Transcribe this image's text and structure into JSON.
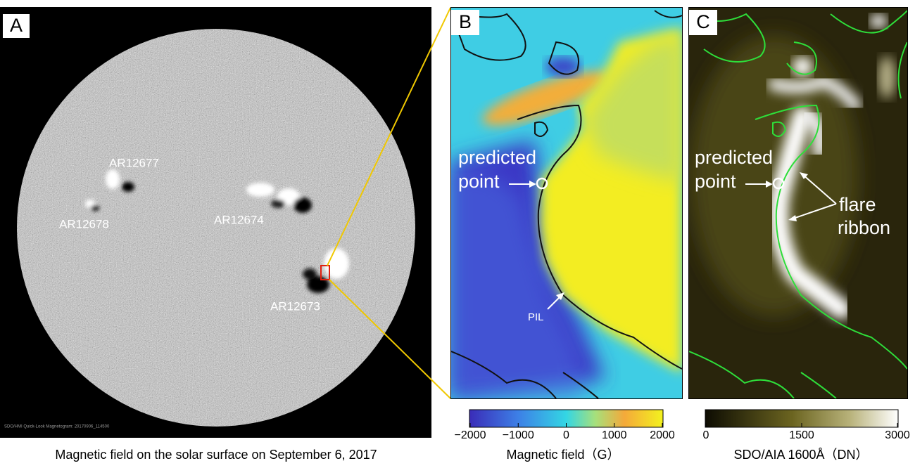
{
  "panel_a": {
    "label": "A",
    "regions": [
      "AR12677",
      "AR12678",
      "AR12674",
      "AR12673"
    ],
    "instrument_note": "SDO/HMI Quick-Look Magnetogram: 20170906_114500",
    "caption": "Magnetic field on the solar surface on September 6, 2017"
  },
  "panel_b": {
    "label": "B",
    "point_label": [
      "predicted",
      "point"
    ],
    "pil_label": "PIL",
    "colorbar": {
      "label": "Magnetic field（G）",
      "range": [
        -2000,
        2000
      ],
      "ticks": [
        {
          "value": -2000,
          "label": "−2000"
        },
        {
          "value": -1000,
          "label": "−1000"
        },
        0,
        1000,
        2000
      ]
    }
  },
  "panel_c": {
    "label": "C",
    "point_label": [
      "predicted",
      "point"
    ],
    "ribbon_label": [
      "flare",
      "ribbon"
    ],
    "colorbar": {
      "label": "SDO/AIA 1600Å（DN）",
      "range": [
        0,
        3000
      ],
      "ticks": [
        0,
        1500,
        3000
      ]
    }
  }
}
